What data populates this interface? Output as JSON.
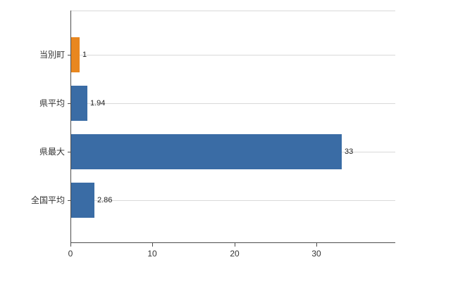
{
  "chart_data": {
    "type": "bar",
    "orientation": "horizontal",
    "title": "",
    "xlabel": "",
    "ylabel": "",
    "categories": [
      "当別町",
      "県平均",
      "県最大",
      "全国平均"
    ],
    "values": [
      1,
      1.94,
      33,
      2.86
    ],
    "value_labels": [
      "1",
      "1.94",
      "33",
      "2.86"
    ],
    "bar_colors": [
      "#e8871f",
      "#3a6ca5",
      "#3a6ca5",
      "#3a6ca5"
    ],
    "x_ticks": [
      0,
      10,
      20,
      30
    ],
    "x_tick_labels": [
      "0",
      "10",
      "20",
      "30"
    ],
    "xlim": [
      0,
      39.5
    ],
    "grid": "horizontal lines at category centers",
    "legend": "none"
  },
  "colors": {
    "bar_default": "#3a6ca5",
    "bar_highlight": "#e8871f",
    "axis": "#4d4d4d",
    "gridline": "#d9d9d9",
    "text": "#333333",
    "background": "#ffffff"
  }
}
